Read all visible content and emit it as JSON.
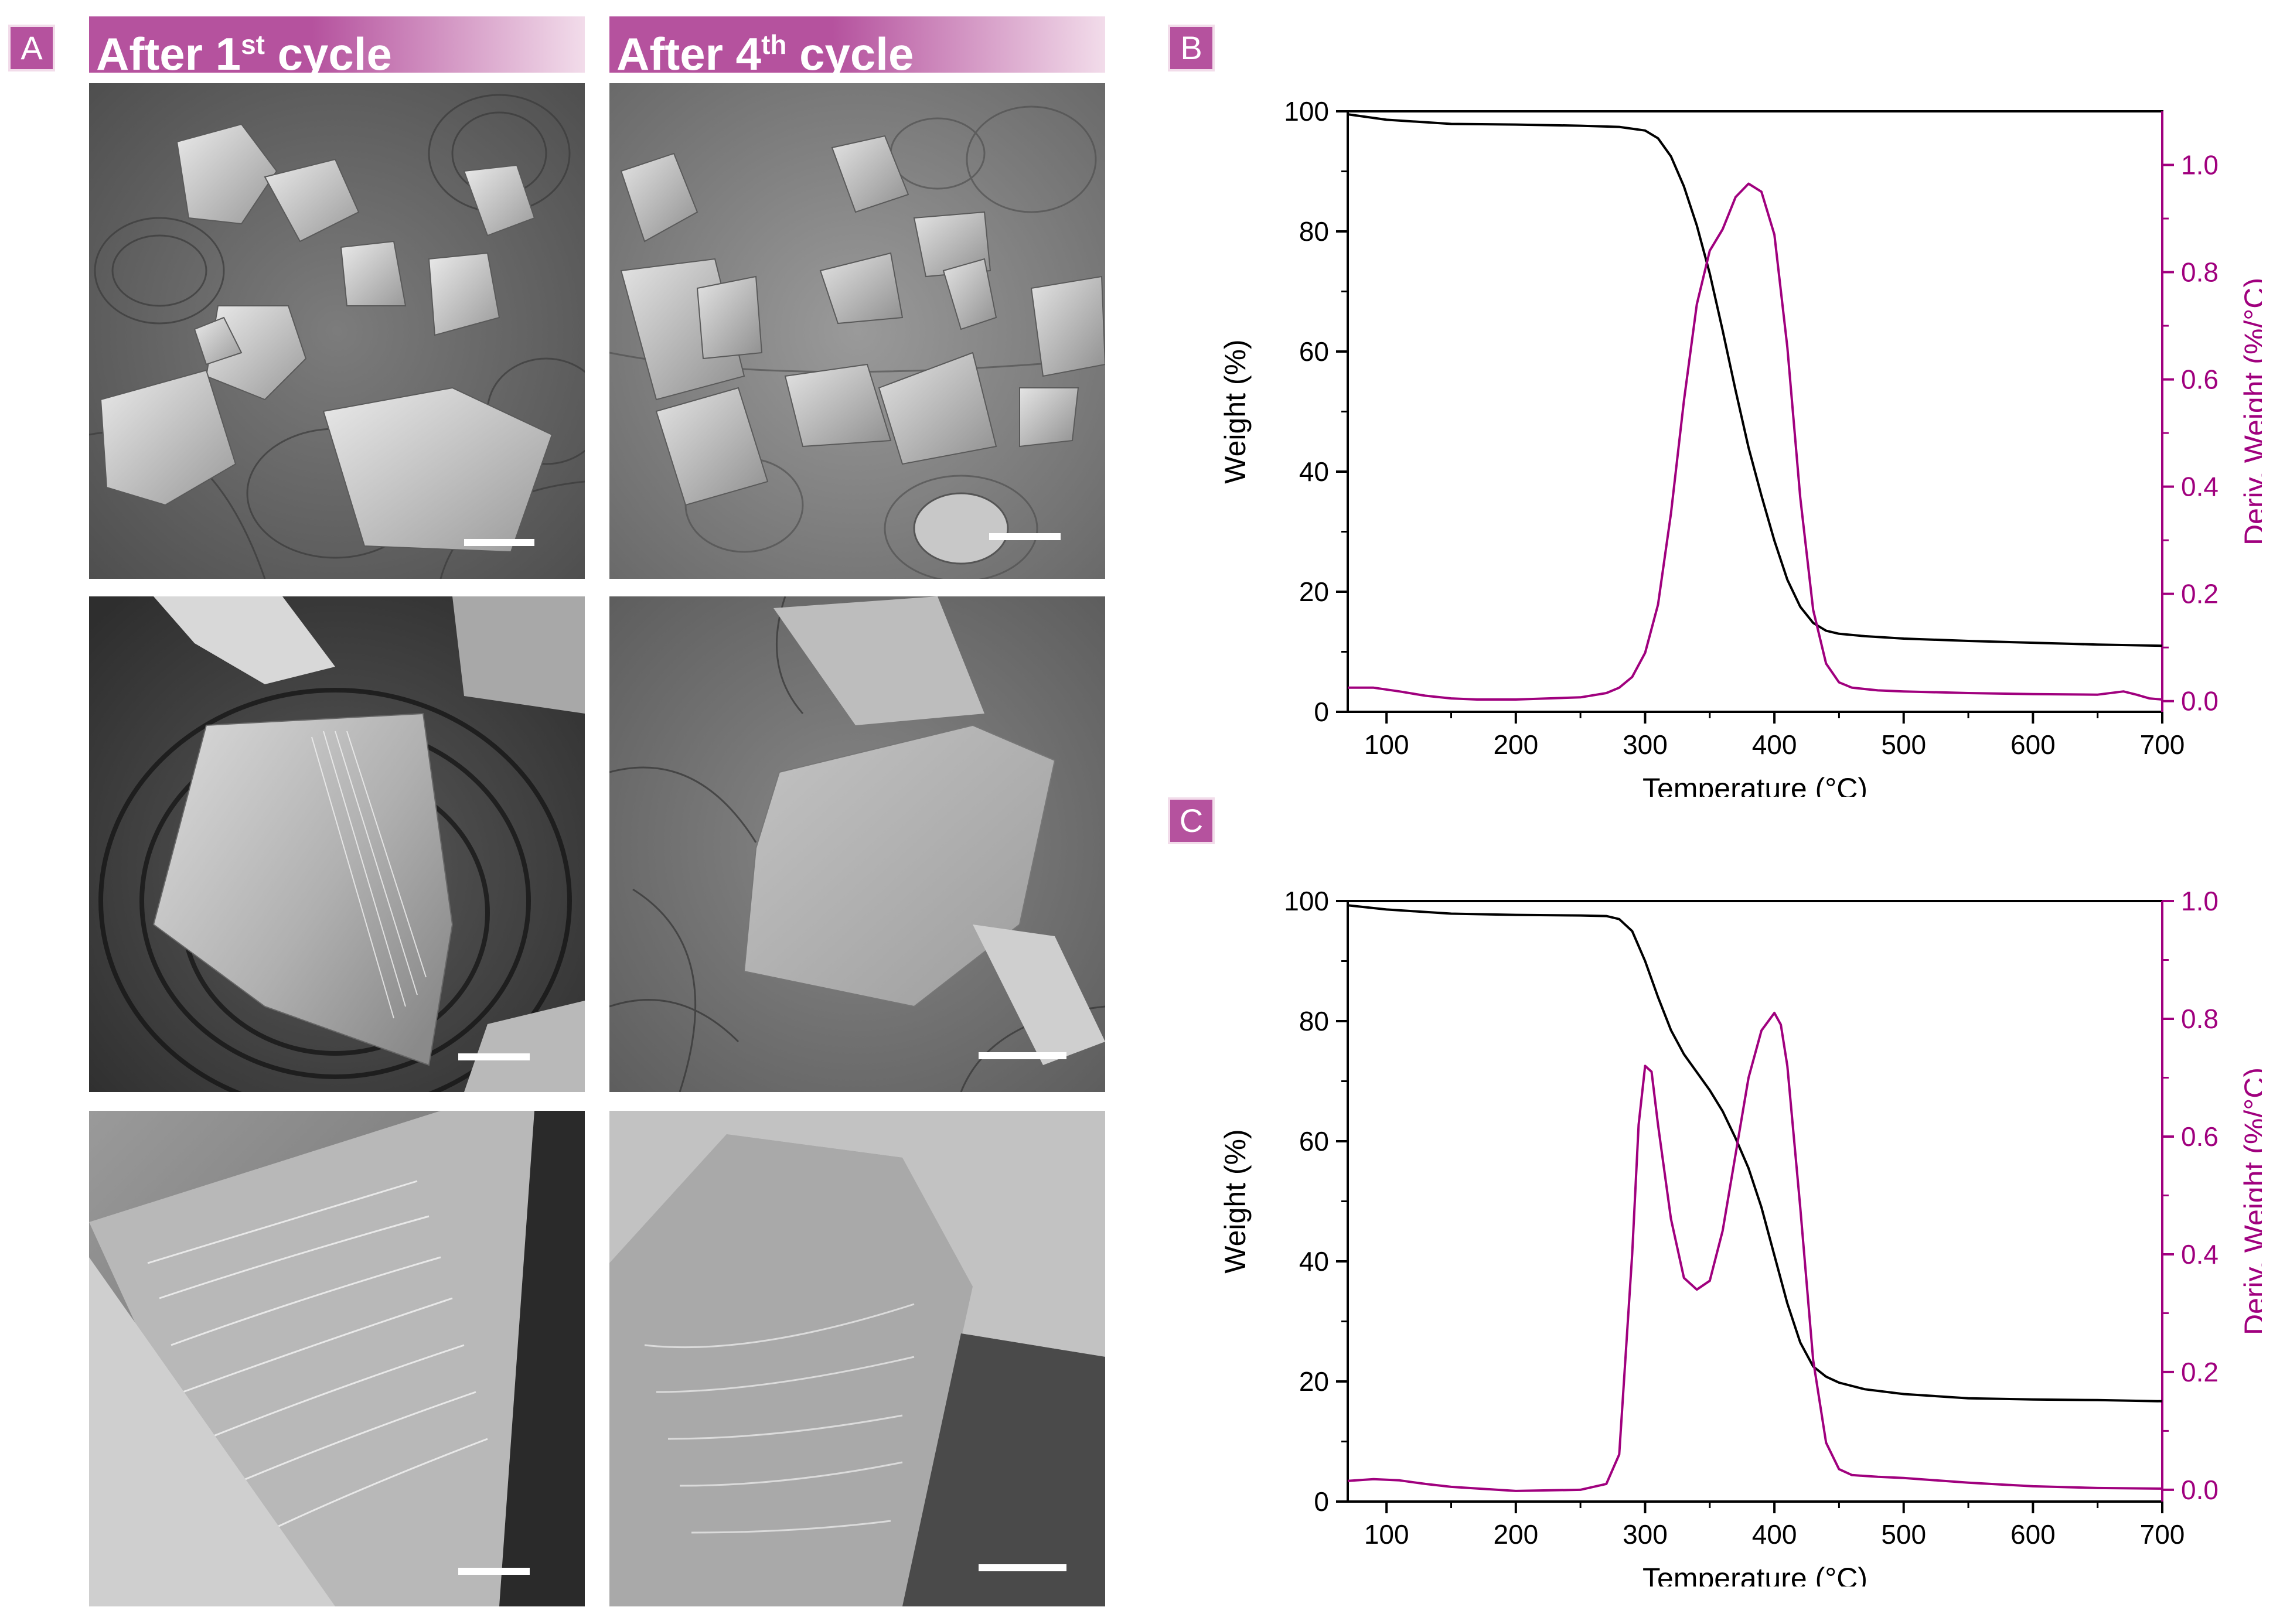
{
  "panel_labels": {
    "a": "A",
    "b": "B",
    "c": "C"
  },
  "column_headers": {
    "left": {
      "prefix": "After 1",
      "sup": "st",
      "suffix": " cycle"
    },
    "right": {
      "prefix": "After 4",
      "sup": "th",
      "suffix": " cycle"
    }
  },
  "colors": {
    "accent": "#b5529e",
    "accent_light": "#f2dcea",
    "weight_line": "#000000",
    "deriv_line": "#a0007e"
  },
  "sem_images": [
    {
      "name": "sem-1st-cycle-low-mag"
    },
    {
      "name": "sem-4th-cycle-low-mag"
    },
    {
      "name": "sem-1st-cycle-mid-mag"
    },
    {
      "name": "sem-4th-cycle-mid-mag"
    },
    {
      "name": "sem-1st-cycle-high-mag"
    },
    {
      "name": "sem-4th-cycle-high-mag"
    }
  ],
  "chart_data": [
    {
      "panel": "B",
      "type": "line",
      "xlabel": "Temperature (°C)",
      "ylabel": "Weight (%)",
      "y2label": "Deriv. Weight (%/°C)",
      "xlim": [
        70,
        700
      ],
      "ylim": [
        0,
        100
      ],
      "y2lim": [
        -0.02,
        1.1
      ],
      "xticks": [
        100,
        200,
        300,
        400,
        500,
        600,
        700
      ],
      "yticks": [
        0,
        20,
        40,
        60,
        80,
        100
      ],
      "y2ticks": [
        "0.0",
        "0.2",
        "0.4",
        "0.6",
        "0.8",
        "1.0"
      ],
      "y2tick_values": [
        0,
        0.2,
        0.4,
        0.6,
        0.8,
        1.0
      ],
      "series": [
        {
          "axis": "left",
          "color": "#000000",
          "x": [
            70,
            100,
            150,
            200,
            250,
            280,
            300,
            310,
            320,
            330,
            340,
            350,
            360,
            370,
            380,
            390,
            400,
            410,
            420,
            430,
            440,
            450,
            470,
            500,
            550,
            600,
            650,
            700
          ],
          "y": [
            99.5,
            98.6,
            97.9,
            97.8,
            97.6,
            97.4,
            96.8,
            95.5,
            92.5,
            87.5,
            81.0,
            73.0,
            63.5,
            53.5,
            44.0,
            36.0,
            28.5,
            22.0,
            17.5,
            14.8,
            13.5,
            13.0,
            12.6,
            12.2,
            11.8,
            11.5,
            11.2,
            11.0
          ]
        },
        {
          "axis": "right",
          "color": "#a0007e",
          "x": [
            70,
            90,
            110,
            130,
            150,
            170,
            200,
            250,
            270,
            280,
            290,
            300,
            310,
            320,
            330,
            340,
            350,
            360,
            370,
            380,
            390,
            400,
            410,
            420,
            430,
            440,
            450,
            460,
            480,
            500,
            550,
            600,
            650,
            670,
            680,
            690,
            700
          ],
          "y": [
            0.025,
            0.025,
            0.018,
            0.01,
            0.005,
            0.003,
            0.003,
            0.007,
            0.015,
            0.025,
            0.045,
            0.09,
            0.18,
            0.35,
            0.56,
            0.74,
            0.84,
            0.88,
            0.94,
            0.965,
            0.95,
            0.87,
            0.66,
            0.38,
            0.17,
            0.07,
            0.035,
            0.025,
            0.02,
            0.018,
            0.015,
            0.013,
            0.012,
            0.018,
            0.012,
            0.005,
            0.003
          ]
        }
      ]
    },
    {
      "panel": "C",
      "type": "line",
      "xlabel": "Temperature (°C)",
      "ylabel": "Weight (%)",
      "y2label": "Deriv. Weight (%/°C)",
      "xlim": [
        70,
        700
      ],
      "ylim": [
        0,
        100
      ],
      "y2lim": [
        -0.02,
        1.0
      ],
      "xticks": [
        100,
        200,
        300,
        400,
        500,
        600,
        700
      ],
      "yticks": [
        0,
        20,
        40,
        60,
        80,
        100
      ],
      "y2ticks": [
        "0.0",
        "0.2",
        "0.4",
        "0.6",
        "0.8",
        "1.0"
      ],
      "y2tick_values": [
        0,
        0.2,
        0.4,
        0.6,
        0.8,
        1.0
      ],
      "series": [
        {
          "axis": "left",
          "color": "#000000",
          "x": [
            70,
            100,
            150,
            200,
            250,
            270,
            280,
            290,
            300,
            310,
            320,
            330,
            340,
            350,
            360,
            370,
            380,
            390,
            400,
            410,
            420,
            430,
            440,
            450,
            470,
            500,
            550,
            600,
            650,
            700
          ],
          "y": [
            99.3,
            98.6,
            97.9,
            97.7,
            97.6,
            97.5,
            97.0,
            95.0,
            90.0,
            84.0,
            78.5,
            74.5,
            71.5,
            68.5,
            65.0,
            60.5,
            55.5,
            49.0,
            41.0,
            33.0,
            26.5,
            22.5,
            20.8,
            19.8,
            18.7,
            17.9,
            17.2,
            17.0,
            16.9,
            16.7
          ]
        },
        {
          "axis": "right",
          "color": "#a0007e",
          "x": [
            70,
            90,
            110,
            130,
            150,
            200,
            250,
            270,
            280,
            290,
            295,
            300,
            305,
            310,
            320,
            330,
            340,
            350,
            360,
            370,
            380,
            390,
            400,
            405,
            410,
            420,
            430,
            440,
            450,
            460,
            480,
            500,
            550,
            600,
            650,
            700
          ],
          "y": [
            0.015,
            0.018,
            0.016,
            0.01,
            0.005,
            -0.002,
            0.0,
            0.01,
            0.06,
            0.4,
            0.62,
            0.72,
            0.71,
            0.62,
            0.46,
            0.36,
            0.34,
            0.355,
            0.44,
            0.57,
            0.7,
            0.78,
            0.81,
            0.79,
            0.72,
            0.48,
            0.22,
            0.08,
            0.035,
            0.025,
            0.022,
            0.02,
            0.012,
            0.006,
            0.003,
            0.002
          ]
        }
      ]
    }
  ]
}
